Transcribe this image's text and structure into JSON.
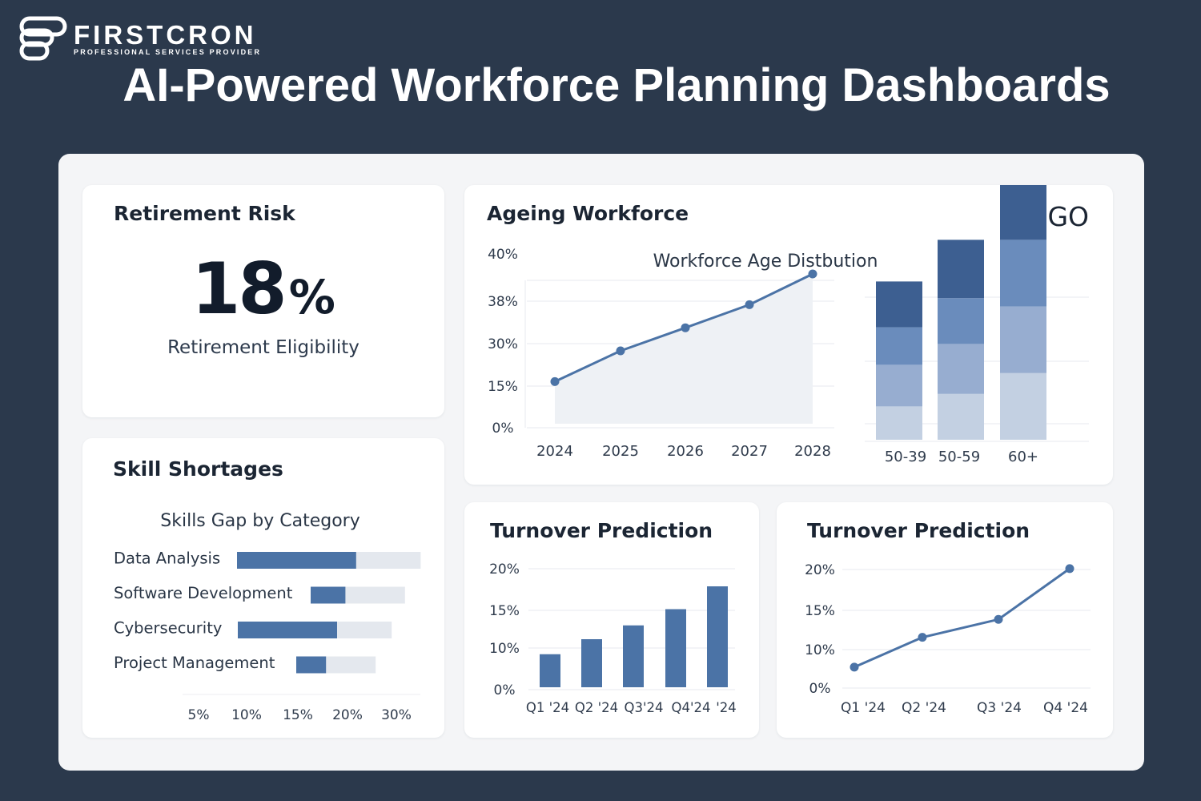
{
  "brand": {
    "name": "FIRSTCRON",
    "tagline": "PROFESSIONAL SERVICES PROVIDER"
  },
  "page": {
    "title": "AI-Powered Workforce Planning Dashboards"
  },
  "colors": {
    "background": "#2b394c",
    "panel": "#f4f5f7",
    "card": "#ffffff",
    "accent": "#4b73a6",
    "track": "#e4e8ee",
    "text": "#1b2533"
  },
  "retirement": {
    "title": "Retirement Risk",
    "value": "18",
    "unit": "%",
    "label": "Retirement Eligibility"
  },
  "skills": {
    "title": "Skill Shortages",
    "chart_data": {
      "type": "bar",
      "title": "Skills Gap by Category",
      "orientation": "horizontal",
      "categories": [
        "Data Analysis",
        "Software Development",
        "Cybersecurity",
        "Project Management"
      ],
      "values": [
        24,
        7,
        20,
        6
      ],
      "totals": [
        37,
        19,
        31,
        16
      ],
      "x_ticks": [
        "5%",
        "10%",
        "15%",
        "20%",
        "30%"
      ]
    }
  },
  "ageing": {
    "title": "Ageing Workforce",
    "logo_text": "LOGO",
    "chart_data": [
      {
        "type": "area",
        "x": [
          "2024",
          "2025",
          "2026",
          "2027",
          "2028"
        ],
        "values": [
          12,
          20,
          26,
          32,
          40
        ],
        "y_ticks": [
          "0%",
          "15%",
          "30%",
          "38%",
          "40%"
        ],
        "ylim": [
          0,
          45
        ],
        "grid": true
      },
      {
        "type": "bar",
        "stacked": true,
        "title": "Workforce Age Distbution",
        "categories": [
          "50-39",
          "50-59",
          "60+"
        ],
        "series": [
          {
            "values": [
              8,
              11,
              16
            ],
            "color": "#c3d0e2"
          },
          {
            "values": [
              10,
              12,
              16
            ],
            "color": "#97add0"
          },
          {
            "values": [
              9,
              11,
              16
            ],
            "color": "#6a8cbc"
          },
          {
            "values": [
              11,
              14,
              14
            ],
            "color": "#3d5f91"
          }
        ]
      }
    ]
  },
  "turnover_bar": {
    "title": "Turnover Prediction",
    "chart_data": {
      "type": "bar",
      "categories": [
        "Q1 '24",
        "Q2 '24",
        "Q3'24",
        "Q4'24",
        "'24"
      ],
      "values": [
        5.5,
        8,
        10.3,
        13,
        16.8
      ],
      "y_ticks": [
        "0%",
        "10%",
        "15%",
        "20%"
      ],
      "ylim": [
        0,
        20
      ],
      "grid": true
    }
  },
  "turnover_line": {
    "title": "Turnover Prediction",
    "chart_data": {
      "type": "line",
      "categories": [
        "Q1 '24",
        "Q2 '24",
        "Q3 '24",
        "Q4 '24"
      ],
      "values": [
        3.5,
        8.5,
        11.5,
        20
      ],
      "y_ticks": [
        "0%",
        "10%",
        "15%",
        "20%"
      ],
      "ylim": [
        0,
        22
      ],
      "grid": true
    }
  }
}
